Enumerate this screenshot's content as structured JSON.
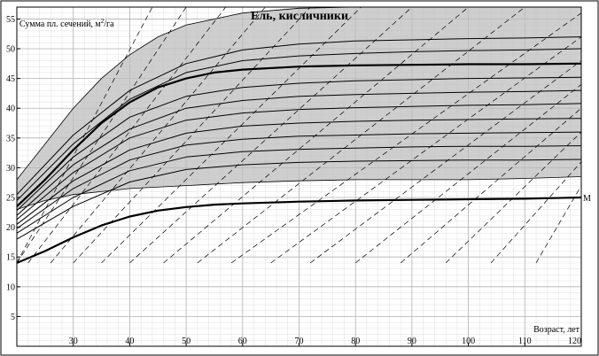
{
  "chart_data": {
    "type": "line",
    "title": "Ель, кисличники",
    "ylabel": "Сумма пл. сечений, м²/га",
    "ylabel_prefix": "Сумма пл. сечений, м",
    "ylabel_sup": "2",
    "ylabel_suffix": "/га",
    "xlabel": "Возраст, лет",
    "xlim": [
      20,
      120
    ],
    "ylim": [
      0,
      57
    ],
    "x_ticks": [
      30,
      40,
      50,
      60,
      70,
      80,
      90,
      100,
      110,
      120
    ],
    "y_ticks": [
      5,
      10,
      15,
      20,
      25,
      30,
      35,
      40,
      45,
      50,
      55
    ],
    "grid": true,
    "band": {
      "fill": "#bdbdbd",
      "upper": {
        "x": [
          20,
          25,
          30,
          35,
          40,
          45,
          50,
          60,
          70,
          80,
          90,
          100,
          110,
          120
        ],
        "y": [
          28,
          34,
          40,
          45,
          49,
          52,
          54,
          56,
          56.8,
          57,
          57,
          57,
          57,
          57
        ]
      },
      "lower": {
        "x": [
          20,
          25,
          30,
          40,
          50,
          60,
          70,
          80,
          90,
          100,
          110,
          120
        ],
        "y": [
          23,
          24.5,
          25.5,
          26.5,
          27,
          27.5,
          27.8,
          28,
          28,
          28,
          28.2,
          28.5
        ]
      }
    },
    "series": [
      {
        "name": "",
        "width": 2.2,
        "x": [
          20,
          25,
          30,
          35,
          40,
          45,
          50,
          55,
          60,
          70,
          80,
          90,
          100,
          110,
          120
        ],
        "y": [
          23.5,
          28,
          33,
          37.5,
          41,
          43.5,
          45,
          46,
          46.5,
          47,
          47.2,
          47.3,
          47.4,
          47.4,
          47.5
        ]
      },
      {
        "name": "М",
        "width": 2.2,
        "x": [
          20,
          25,
          30,
          35,
          40,
          45,
          50,
          55,
          60,
          70,
          80,
          90,
          100,
          110,
          120
        ],
        "y": [
          14,
          16,
          18.3,
          20.3,
          21.8,
          22.8,
          23.4,
          23.8,
          24,
          24.3,
          24.5,
          24.6,
          24.7,
          24.8,
          25
        ]
      },
      {
        "name": "",
        "width": 1,
        "x": [
          20,
          30,
          40,
          50,
          60,
          70,
          80,
          90,
          100,
          110,
          120
        ],
        "y": [
          25.5,
          35.5,
          43,
          47.5,
          49.8,
          50.8,
          51.3,
          51.5,
          51.7,
          51.8,
          52
        ]
      },
      {
        "name": "",
        "width": 1,
        "x": [
          20,
          30,
          40,
          50,
          60,
          70,
          80,
          90,
          100,
          110,
          120
        ],
        "y": [
          24.5,
          34,
          41.5,
          46,
          48,
          48.8,
          49.2,
          49.5,
          49.7,
          49.8,
          50
        ]
      },
      {
        "name": "",
        "width": 1,
        "x": [
          20,
          30,
          40,
          50,
          60,
          70,
          80,
          90,
          100,
          110,
          120
        ],
        "y": [
          22.8,
          31.8,
          38.5,
          42,
          43.5,
          44.2,
          44.6,
          44.8,
          45,
          45.1,
          45.2
        ]
      },
      {
        "name": "",
        "width": 1,
        "x": [
          20,
          30,
          40,
          50,
          60,
          70,
          80,
          90,
          100,
          110,
          120
        ],
        "y": [
          22,
          30.5,
          36.5,
          40,
          41.3,
          42,
          42.3,
          42.5,
          42.7,
          42.8,
          43
        ]
      },
      {
        "name": "",
        "width": 1,
        "x": [
          20,
          30,
          40,
          50,
          60,
          70,
          80,
          90,
          100,
          110,
          120
        ],
        "y": [
          21.3,
          29.2,
          35,
          38,
          39.2,
          39.8,
          40.1,
          40.3,
          40.5,
          40.6,
          40.8
        ]
      },
      {
        "name": "",
        "width": 1,
        "x": [
          20,
          30,
          40,
          50,
          60,
          70,
          80,
          90,
          100,
          110,
          120
        ],
        "y": [
          20.5,
          27.8,
          33,
          35.8,
          37,
          37.5,
          37.8,
          38,
          38.1,
          38.2,
          38.3
        ]
      },
      {
        "name": "",
        "width": 1,
        "x": [
          20,
          30,
          40,
          50,
          60,
          70,
          80,
          90,
          100,
          110,
          120
        ],
        "y": [
          19.8,
          26.5,
          31.3,
          33.8,
          34.8,
          35.3,
          35.5,
          35.7,
          35.8,
          35.9,
          36
        ]
      },
      {
        "name": "",
        "width": 1,
        "x": [
          20,
          30,
          40,
          50,
          60,
          70,
          80,
          90,
          100,
          110,
          120
        ],
        "y": [
          19,
          25,
          29.5,
          31.8,
          32.7,
          33.1,
          33.3,
          33.5,
          33.6,
          33.6,
          33.7
        ]
      },
      {
        "name": "",
        "width": 1,
        "x": [
          20,
          30,
          40,
          50,
          60,
          70,
          80,
          90,
          100,
          110,
          120
        ],
        "y": [
          18,
          23.5,
          27.6,
          29.7,
          30.5,
          30.9,
          31.1,
          31.2,
          31.3,
          31.3,
          31.4
        ]
      }
    ],
    "dashed_lines": [
      {
        "x": [
          20,
          44
        ],
        "y": [
          14,
          57
        ]
      },
      {
        "x": [
          20,
          50
        ],
        "y": [
          14,
          57
        ]
      },
      {
        "x": [
          22,
          57
        ],
        "y": [
          14,
          57
        ]
      },
      {
        "x": [
          26,
          64
        ],
        "y": [
          14,
          57
        ]
      },
      {
        "x": [
          30,
          72
        ],
        "y": [
          14,
          57
        ]
      },
      {
        "x": [
          35,
          81
        ],
        "y": [
          14,
          57
        ]
      },
      {
        "x": [
          40,
          90
        ],
        "y": [
          14,
          57
        ]
      },
      {
        "x": [
          46,
          100
        ],
        "y": [
          14,
          57
        ]
      },
      {
        "x": [
          52,
          110
        ],
        "y": [
          14,
          57
        ]
      },
      {
        "x": [
          58,
          120
        ],
        "y": [
          14,
          56
        ]
      },
      {
        "x": [
          65,
          120
        ],
        "y": [
          14,
          52
        ]
      },
      {
        "x": [
          72,
          120
        ],
        "y": [
          14,
          48
        ]
      },
      {
        "x": [
          80,
          120
        ],
        "y": [
          14,
          44
        ]
      },
      {
        "x": [
          88,
          120
        ],
        "y": [
          14,
          40
        ]
      },
      {
        "x": [
          96,
          120
        ],
        "y": [
          14,
          36
        ]
      },
      {
        "x": [
          104,
          120
        ],
        "y": [
          14,
          31
        ]
      },
      {
        "x": [
          112,
          120
        ],
        "y": [
          14,
          27
        ]
      }
    ]
  }
}
